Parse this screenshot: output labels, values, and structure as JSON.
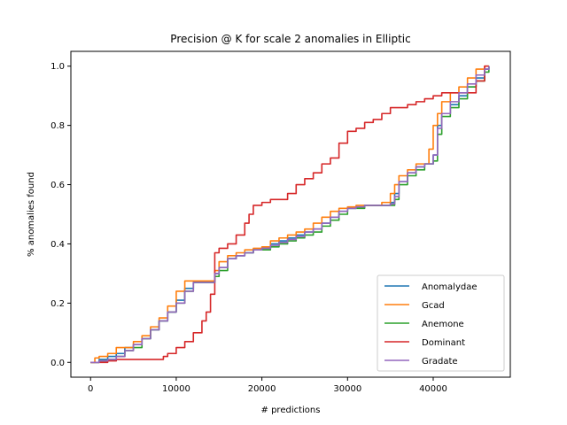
{
  "chart_data": {
    "type": "line",
    "title": "Precision @ K for scale 2 anomalies in Elliptic",
    "xlabel": "# predictions",
    "ylabel": "% anomalies found",
    "xlim": [
      -2300,
      49000
    ],
    "ylim": [
      -0.05,
      1.05
    ],
    "xticks": [
      0,
      10000,
      20000,
      30000,
      40000
    ],
    "xtick_labels": [
      "0",
      "10000",
      "20000",
      "30000",
      "40000"
    ],
    "yticks": [
      0.0,
      0.2,
      0.4,
      0.6,
      0.8,
      1.0
    ],
    "ytick_labels": [
      "0.0",
      "0.2",
      "0.4",
      "0.6",
      "0.8",
      "1.0"
    ],
    "grid": false,
    "legend_position": "lower-right",
    "colors": {
      "Anomalydae": "#1f77b4",
      "Gcad": "#ff7f0e",
      "Anemone": "#2ca02c",
      "Dominant": "#d62728",
      "Gradate": "#9467bd"
    },
    "series": [
      {
        "name": "Anomalydae",
        "x": [
          0,
          1000,
          2000,
          3000,
          4000,
          5000,
          6000,
          7000,
          8000,
          9000,
          10000,
          11000,
          12000,
          13000,
          14000,
          14500,
          15000,
          16000,
          17000,
          18000,
          19000,
          20000,
          21000,
          22000,
          23000,
          24000,
          25000,
          26000,
          27000,
          28000,
          29000,
          30000,
          31000,
          32000,
          33000,
          34000,
          35000,
          35500,
          36000,
          37000,
          38000,
          39000,
          40000,
          40500,
          41000,
          42000,
          43000,
          44000,
          45000,
          46000,
          46500
        ],
        "y": [
          0.0,
          0.01,
          0.02,
          0.03,
          0.05,
          0.06,
          0.08,
          0.11,
          0.14,
          0.17,
          0.21,
          0.25,
          0.27,
          0.27,
          0.27,
          0.3,
          0.32,
          0.35,
          0.36,
          0.37,
          0.38,
          0.385,
          0.4,
          0.41,
          0.42,
          0.43,
          0.44,
          0.45,
          0.47,
          0.49,
          0.51,
          0.52,
          0.525,
          0.53,
          0.53,
          0.53,
          0.54,
          0.57,
          0.61,
          0.64,
          0.66,
          0.67,
          0.7,
          0.8,
          0.84,
          0.87,
          0.9,
          0.93,
          0.96,
          0.99,
          1.0
        ]
      },
      {
        "name": "Gcad",
        "x": [
          0,
          500,
          1000,
          2000,
          3000,
          4000,
          5000,
          6000,
          7000,
          8000,
          9000,
          10000,
          11000,
          12000,
          13000,
          14000,
          14500,
          15000,
          16000,
          17000,
          18000,
          19000,
          20000,
          21000,
          22000,
          23000,
          24000,
          25000,
          26000,
          27000,
          28000,
          29000,
          30000,
          31000,
          32000,
          33000,
          34000,
          35000,
          35500,
          36000,
          37000,
          38000,
          39000,
          39500,
          40000,
          40500,
          41000,
          42000,
          43000,
          44000,
          45000,
          46000,
          46500
        ],
        "y": [
          0.0,
          0.015,
          0.02,
          0.03,
          0.05,
          0.05,
          0.07,
          0.09,
          0.12,
          0.15,
          0.19,
          0.24,
          0.275,
          0.275,
          0.275,
          0.275,
          0.31,
          0.34,
          0.36,
          0.37,
          0.38,
          0.385,
          0.39,
          0.41,
          0.42,
          0.43,
          0.44,
          0.45,
          0.47,
          0.49,
          0.51,
          0.52,
          0.525,
          0.53,
          0.53,
          0.53,
          0.54,
          0.57,
          0.6,
          0.63,
          0.65,
          0.67,
          0.67,
          0.72,
          0.8,
          0.84,
          0.88,
          0.91,
          0.93,
          0.96,
          0.99,
          1.0,
          1.0
        ]
      },
      {
        "name": "Anemone",
        "x": [
          0,
          1000,
          2000,
          3000,
          4000,
          5000,
          6000,
          7000,
          8000,
          9000,
          10000,
          11000,
          12000,
          13000,
          14000,
          14500,
          15000,
          16000,
          17000,
          18000,
          19000,
          20000,
          21000,
          22000,
          23000,
          24000,
          25000,
          26000,
          27000,
          28000,
          29000,
          30000,
          31000,
          32000,
          33000,
          34000,
          35000,
          35500,
          36000,
          37000,
          38000,
          39000,
          40000,
          40500,
          41000,
          42000,
          43000,
          44000,
          45000,
          46000,
          46500
        ],
        "y": [
          0.0,
          0.005,
          0.01,
          0.02,
          0.04,
          0.05,
          0.08,
          0.11,
          0.14,
          0.17,
          0.2,
          0.24,
          0.27,
          0.27,
          0.27,
          0.29,
          0.31,
          0.35,
          0.36,
          0.37,
          0.38,
          0.38,
          0.39,
          0.4,
          0.41,
          0.42,
          0.43,
          0.44,
          0.46,
          0.48,
          0.5,
          0.52,
          0.52,
          0.53,
          0.53,
          0.53,
          0.53,
          0.55,
          0.6,
          0.63,
          0.65,
          0.67,
          0.68,
          0.77,
          0.83,
          0.86,
          0.89,
          0.93,
          0.95,
          0.98,
          1.0
        ]
      },
      {
        "name": "Dominant",
        "x": [
          0,
          1000,
          2000,
          3000,
          4000,
          5000,
          6000,
          7000,
          8000,
          8500,
          9000,
          10000,
          11000,
          12000,
          13000,
          13500,
          14000,
          14500,
          15000,
          16000,
          17000,
          18000,
          18500,
          19000,
          20000,
          21000,
          22000,
          23000,
          24000,
          25000,
          26000,
          27000,
          28000,
          29000,
          30000,
          31000,
          32000,
          33000,
          34000,
          35000,
          36000,
          37000,
          38000,
          39000,
          40000,
          41000,
          42000,
          43000,
          44000,
          44500,
          45000,
          46000,
          46500
        ],
        "y": [
          0.0,
          0.0,
          0.005,
          0.01,
          0.01,
          0.01,
          0.01,
          0.01,
          0.01,
          0.02,
          0.03,
          0.05,
          0.07,
          0.1,
          0.14,
          0.17,
          0.23,
          0.37,
          0.385,
          0.4,
          0.43,
          0.47,
          0.5,
          0.53,
          0.54,
          0.55,
          0.55,
          0.57,
          0.6,
          0.62,
          0.64,
          0.67,
          0.69,
          0.74,
          0.78,
          0.79,
          0.81,
          0.82,
          0.84,
          0.86,
          0.86,
          0.87,
          0.88,
          0.89,
          0.9,
          0.91,
          0.91,
          0.91,
          0.91,
          0.91,
          0.95,
          1.0,
          1.0
        ]
      },
      {
        "name": "Gradate",
        "x": [
          0,
          1000,
          2000,
          3000,
          4000,
          5000,
          6000,
          7000,
          8000,
          9000,
          10000,
          11000,
          12000,
          13000,
          14000,
          14500,
          15000,
          16000,
          17000,
          18000,
          19000,
          20000,
          21000,
          22000,
          23000,
          24000,
          25000,
          26000,
          27000,
          28000,
          29000,
          30000,
          31000,
          32000,
          33000,
          34000,
          35000,
          35500,
          36000,
          37000,
          38000,
          39000,
          40000,
          40500,
          41000,
          42000,
          43000,
          44000,
          45000,
          46000,
          46500
        ],
        "y": [
          0.0,
          0.005,
          0.01,
          0.02,
          0.04,
          0.06,
          0.08,
          0.11,
          0.14,
          0.17,
          0.2,
          0.24,
          0.27,
          0.27,
          0.27,
          0.3,
          0.32,
          0.35,
          0.36,
          0.37,
          0.38,
          0.385,
          0.395,
          0.405,
          0.415,
          0.425,
          0.44,
          0.45,
          0.47,
          0.49,
          0.51,
          0.52,
          0.525,
          0.53,
          0.53,
          0.53,
          0.535,
          0.56,
          0.61,
          0.64,
          0.66,
          0.67,
          0.7,
          0.79,
          0.84,
          0.88,
          0.91,
          0.94,
          0.97,
          0.99,
          1.0
        ]
      }
    ]
  }
}
